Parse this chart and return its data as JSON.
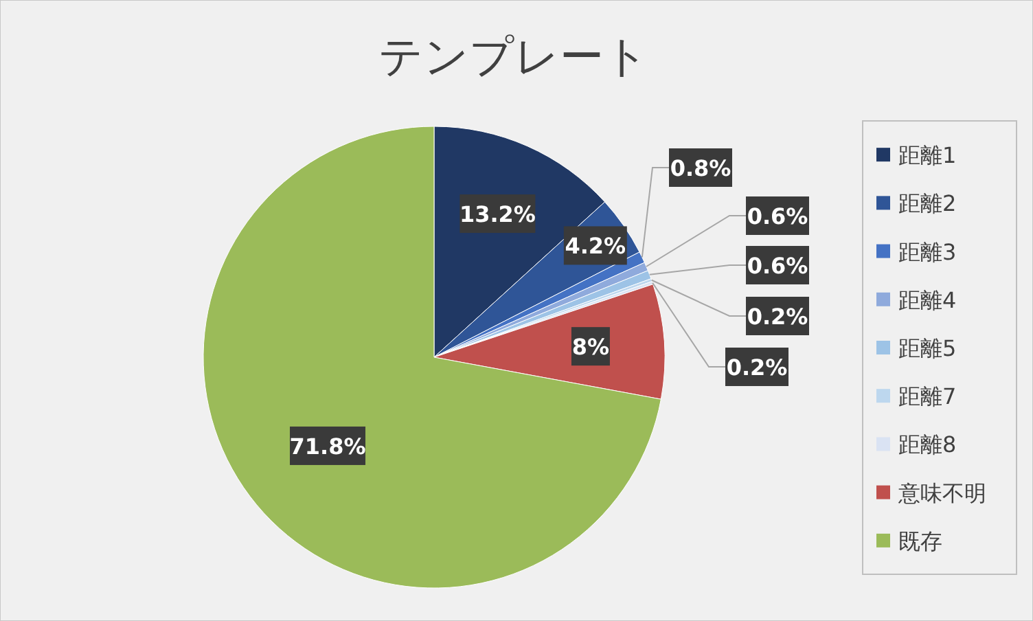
{
  "chart_data": {
    "type": "pie",
    "title": "テンプレート",
    "categories": [
      "距離1",
      "距離2",
      "距離3",
      "距離4",
      "距離5",
      "距離7",
      "距離8",
      "意味不明",
      "既存"
    ],
    "values": [
      13.2,
      4.2,
      0.8,
      0.6,
      0.6,
      0.2,
      0.2,
      8,
      71.8
    ],
    "colors": [
      "#203864",
      "#2f5597",
      "#4472c4",
      "#8faadc",
      "#9dc3e6",
      "#bdd7ee",
      "#dae3f3",
      "#c0504d",
      "#9bbb59"
    ],
    "value_labels": [
      "13.2%",
      "4.2%",
      "0.8%",
      "0.6%",
      "0.6%",
      "0.2%",
      "0.2%",
      "8%",
      "71.8%"
    ],
    "legend": "right"
  }
}
